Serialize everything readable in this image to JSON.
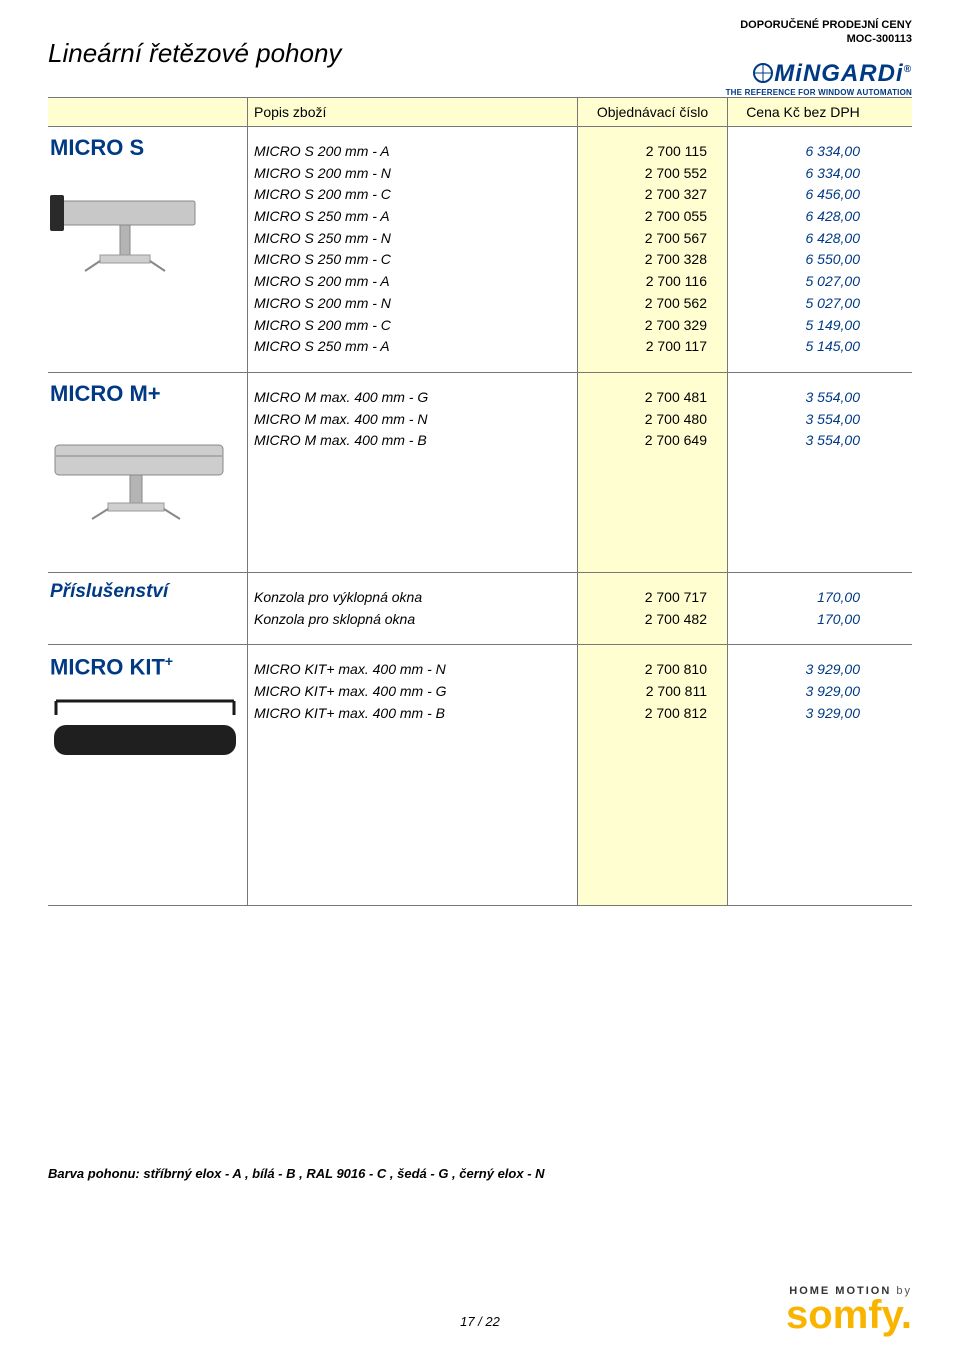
{
  "header": {
    "line1": "DOPORUČENÉ PRODEJNÍ CENY",
    "line2": "MOC-300113"
  },
  "page_title": "Lineární řetězové pohony",
  "brand": {
    "name": "MiNGARDi",
    "tagline": "THE REFERENCE FOR WINDOW AUTOMATION"
  },
  "columns": {
    "desc": "Popis zboží",
    "code": "Objednávací číslo",
    "price": "Cena Kč bez DPH"
  },
  "sections": [
    {
      "title": "MICRO S",
      "title_style": "normal",
      "items": [
        {
          "desc": "MICRO S 200 mm - A",
          "code": "2 700 115",
          "price": "6 334,00"
        },
        {
          "desc": "MICRO S 200 mm - N",
          "code": "2 700 552",
          "price": "6 334,00"
        },
        {
          "desc": "MICRO S 200 mm - C",
          "code": "2 700 327",
          "price": "6 456,00"
        },
        {
          "desc": "MICRO S 250 mm - A",
          "code": "2 700 055",
          "price": "6 428,00"
        },
        {
          "desc": "MICRO S 250 mm - N",
          "code": "2 700 567",
          "price": "6 428,00"
        },
        {
          "desc": "MICRO S 250 mm - C",
          "code": "2 700 328",
          "price": "6 550,00"
        },
        {
          "desc": "MICRO S 200 mm - A",
          "code": "2 700 116",
          "price": "5 027,00"
        },
        {
          "desc": "MICRO S 200 mm - N",
          "code": "2 700 562",
          "price": "5 027,00"
        },
        {
          "desc": "MICRO S 200 mm - C",
          "code": "2 700 329",
          "price": "5 149,00"
        },
        {
          "desc": "MICRO S 250 mm - A",
          "code": "2 700 117",
          "price": "5 145,00"
        }
      ],
      "img": "micro-s"
    },
    {
      "title": "MICRO M+",
      "title_style": "normal",
      "items": [
        {
          "desc": "MICRO M max. 400 mm - G",
          "code": "2 700 481",
          "price": "3 554,00"
        },
        {
          "desc": "MICRO M max. 400 mm - N",
          "code": "2 700 480",
          "price": "3 554,00"
        },
        {
          "desc": "MICRO M max. 400 mm - B",
          "code": "2 700 649",
          "price": "3 554,00"
        }
      ],
      "img": "micro-m",
      "pad_bottom": true
    },
    {
      "title": "Příslušenství",
      "title_style": "italic",
      "items": [
        {
          "desc": "Konzola pro výklopná okna",
          "code": "2 700 717",
          "price": "170,00"
        },
        {
          "desc": "Konzola pro sklopná okna",
          "code": "2 700 482",
          "price": "170,00"
        }
      ],
      "img": null
    },
    {
      "title": "MICRO KIT",
      "title_sup": "+",
      "title_style": "normal",
      "items": [
        {
          "desc": "MICRO KIT+ max. 400 mm - N",
          "code": "2 700 810",
          "price": "3 929,00"
        },
        {
          "desc": "MICRO KIT+ max. 400 mm - G",
          "code": "2 700 811",
          "price": "3 929,00"
        },
        {
          "desc": "MICRO KIT+ max. 400 mm - B",
          "code": "2 700 812",
          "price": "3 929,00"
        }
      ],
      "img": "micro-kit",
      "pad_bottom_large": true
    }
  ],
  "color_note": "Barva pohonu:  stříbrný elox - A ,   bílá - B ,   RAL 9016 - C ,   šedá - G ,   černý elox - N",
  "page_number": "17 / 22",
  "footer_brand": {
    "pre": "HOME MOTION",
    "by": " by",
    "name": "somfy."
  },
  "colors": {
    "highlight_bg": "#fffed0",
    "brand_blue": "#003a84",
    "price_blue": "#003a84",
    "somfy_yellow": "#f9b400",
    "border": "#777777",
    "page_bg": "#ffffff"
  }
}
